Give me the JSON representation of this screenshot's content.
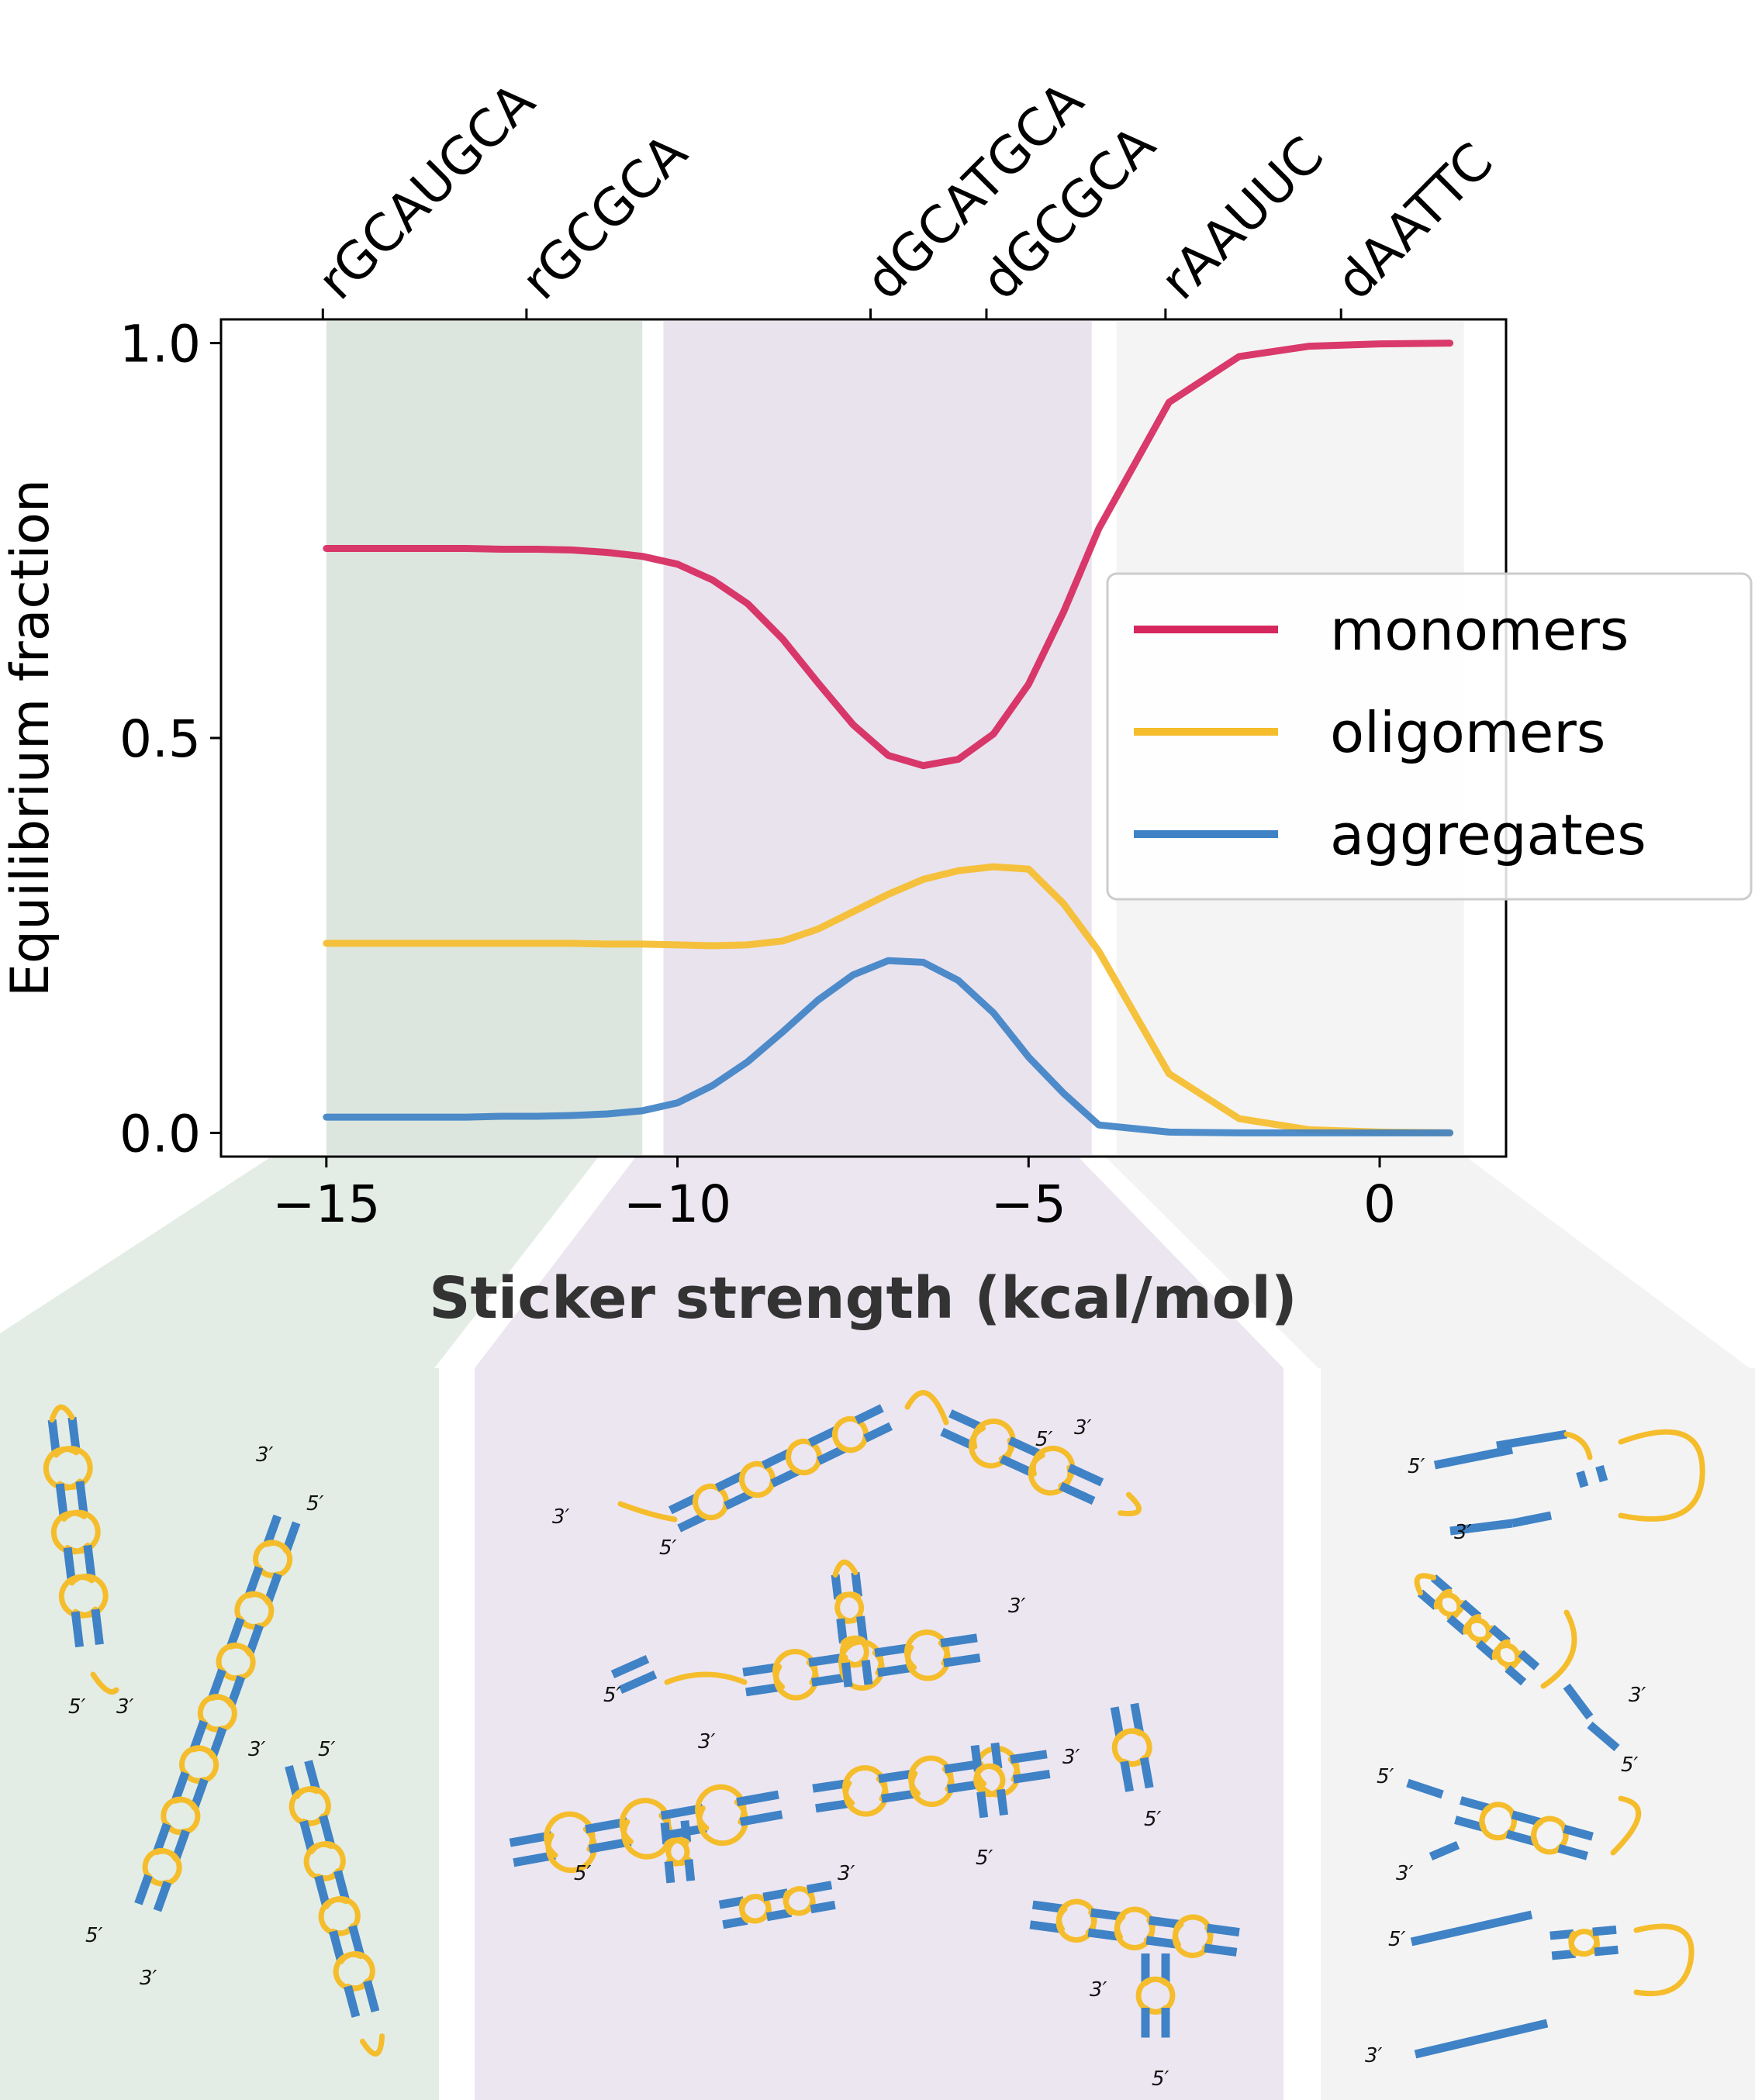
{
  "chart_data": {
    "type": "line",
    "xlabel": "Sticker strength (kcal/mol)",
    "ylabel": "Equilibrium fraction",
    "xlim": [
      -16.5,
      1.8
    ],
    "ylim": [
      -0.03,
      1.03
    ],
    "x_ticks": [
      -15,
      -10,
      -5,
      0
    ],
    "x_tick_labels": [
      "−15",
      "−10",
      "−5",
      "0"
    ],
    "y_ticks": [
      0.0,
      0.5,
      1.0
    ],
    "y_tick_labels": [
      "0.0",
      "0.5",
      "1.0"
    ],
    "top_axis": {
      "ticks": [
        -15.05,
        -12.15,
        -7.25,
        -5.6,
        -3.05,
        -0.55
      ],
      "labels": [
        "rGCAUGCA",
        "rGCGCA",
        "dGCATGCA",
        "dGCGCA",
        "rAAUUC",
        "dAATTC"
      ]
    },
    "regions": [
      {
        "x0": -15,
        "x1": -10.5,
        "color": "#dde6de"
      },
      {
        "x0": -10.2,
        "x1": -4.1,
        "color": "#e9e3ee"
      },
      {
        "x0": -3.75,
        "x1": 1.2,
        "color": "#f4f4f4"
      }
    ],
    "x": [
      -15,
      -14.5,
      -14,
      -13.5,
      -13,
      -12.5,
      -12,
      -11.5,
      -11,
      -10.5,
      -10,
      -9.5,
      -9,
      -8.5,
      -8,
      -7.5,
      -7,
      -6.5,
      -6,
      -5.5,
      -5,
      -4.5,
      -4,
      -3,
      -2,
      -1,
      0,
      1
    ],
    "series": [
      {
        "name": "monomers",
        "color": "#d6285e",
        "values": [
          0.74,
          0.74,
          0.74,
          0.74,
          0.74,
          0.739,
          0.739,
          0.738,
          0.735,
          0.73,
          0.72,
          0.7,
          0.67,
          0.625,
          0.57,
          0.517,
          0.478,
          0.465,
          0.473,
          0.505,
          0.568,
          0.66,
          0.765,
          0.925,
          0.983,
          0.996,
          0.999,
          1.0
        ]
      },
      {
        "name": "oligomers",
        "color": "#f5bd2c",
        "values": [
          0.24,
          0.24,
          0.24,
          0.24,
          0.24,
          0.24,
          0.24,
          0.24,
          0.239,
          0.239,
          0.238,
          0.237,
          0.238,
          0.243,
          0.258,
          0.28,
          0.302,
          0.321,
          0.332,
          0.337,
          0.334,
          0.29,
          0.23,
          0.075,
          0.018,
          0.004,
          0.001,
          0.0
        ]
      },
      {
        "name": "aggregates",
        "color": "#3f82c6",
        "values": [
          0.02,
          0.02,
          0.02,
          0.02,
          0.02,
          0.021,
          0.021,
          0.022,
          0.024,
          0.028,
          0.038,
          0.06,
          0.09,
          0.128,
          0.168,
          0.2,
          0.218,
          0.216,
          0.193,
          0.152,
          0.096,
          0.05,
          0.01,
          0.001,
          0.0,
          0.0,
          0.0,
          0.0
        ]
      }
    ],
    "legend": {
      "placement": "center-right",
      "entries": [
        "monomers",
        "oligomers",
        "aggregates"
      ]
    },
    "grid": false
  },
  "schematics": {
    "panels": [
      {
        "name": "strong-sticker-panel",
        "color": "#e3ede6"
      },
      {
        "name": "intermediate-sticker-panel",
        "color": "#ece6f1"
      },
      {
        "name": "weak-sticker-panel",
        "color": "#f3f3f3"
      }
    ],
    "colors": {
      "stem": "#3f82c6",
      "loop": "#f5bd2c"
    },
    "end_labels": {
      "five_prime": "5′",
      "three_prime": "3′"
    }
  }
}
